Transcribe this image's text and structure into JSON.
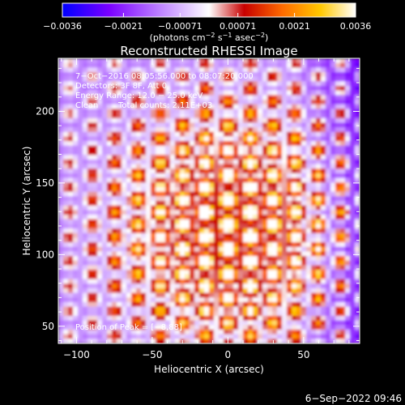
{
  "chart_data": {
    "type": "heatmap",
    "title": "Reconstructed RHESSI Image",
    "xlabel": "Heliocentric X (arcsec)",
    "ylabel": "Heliocentric Y (arcsec)",
    "xlim": [
      -112,
      87
    ],
    "ylim": [
      38,
      237
    ],
    "x_ticks": [
      -100,
      -50,
      0,
      50
    ],
    "x_tick_labels": [
      "−100",
      "−50",
      "0",
      "50"
    ],
    "y_ticks": [
      50,
      100,
      150,
      200
    ],
    "y_tick_labels": [
      "50",
      "100",
      "150",
      "200"
    ],
    "colorbar": {
      "range": [
        -0.0036,
        0.0036
      ],
      "tick_values": [
        -0.0036,
        -0.0021,
        -0.00071,
        0.00071,
        0.0021,
        0.0036
      ],
      "tick_labels": [
        "−0.0036",
        "−0.0021",
        "−0.00071",
        "0.00071",
        "0.0021",
        "0.0036"
      ],
      "unit_label": {
        "part1": "(photons cm",
        "sup1": "−2",
        "part2": " s",
        "sup2": "−1",
        "part3": " asec",
        "sup3": "−2",
        "part4": ")"
      },
      "colors": [
        "#0000ff",
        "#7a00ff",
        "#ffffff",
        "#c80000",
        "#ff6a00",
        "#ffc800",
        "#ffffff"
      ]
    },
    "annotations": {
      "time_range": "7−Oct−2016 08:05:56.000 to 08:07:20.000",
      "detectors": "Detectors: 3F 8F, Att 0",
      "energy_range": "Energy Range: 12.0 − 25.0 keV",
      "clean": "Clean",
      "total_counts": "Total counts: 2.11E+03",
      "peak_position": "Position of Peak = [−8,88]"
    },
    "peak_location": [
      -8,
      88
    ],
    "grid": false,
    "footer_timestamp": "6−Sep−2022 09:46"
  }
}
